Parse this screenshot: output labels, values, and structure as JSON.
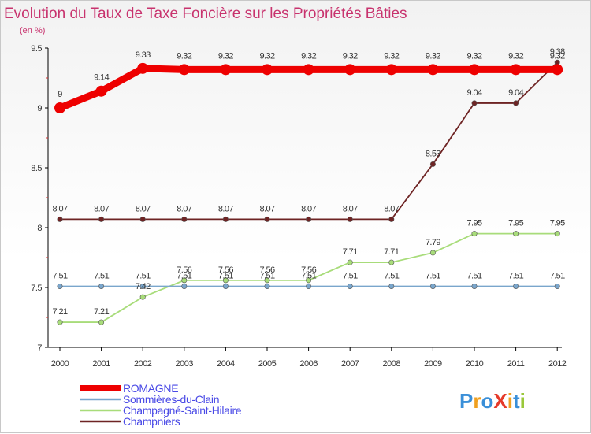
{
  "chart_data": {
    "type": "line",
    "title": "Evolution du Taux de Taxe Foncière sur les Propriétés Bâties",
    "subtitle": "(en %)",
    "x": [
      "2000",
      "2001",
      "2002",
      "2003",
      "2004",
      "2005",
      "2006",
      "2007",
      "2008",
      "2009",
      "2010",
      "2011",
      "2012"
    ],
    "yticks": [
      "7",
      "7.5",
      "8",
      "8.5",
      "9",
      "9.5"
    ],
    "ylim": [
      7,
      9.5
    ],
    "grid": false,
    "legend_position": "bottom-left",
    "series": [
      {
        "name": "ROMAGNE",
        "color": "#ee0000",
        "values": [
          9,
          9.14,
          9.33,
          9.32,
          9.32,
          9.32,
          9.32,
          9.32,
          9.32,
          9.32,
          9.32,
          9.32,
          9.32
        ],
        "labels": [
          "9",
          "9.14",
          "9.33",
          "9.32",
          "9.32",
          "9.32",
          "9.32",
          "9.32",
          "9.32",
          "9.32",
          "9.32",
          "9.32",
          "9.32"
        ]
      },
      {
        "name": "Sommières-du-Clain",
        "color": "#7aa6cc",
        "values": [
          7.51,
          7.51,
          7.51,
          7.51,
          7.51,
          7.51,
          7.51,
          7.51,
          7.51,
          7.51,
          7.51,
          7.51,
          7.51
        ],
        "labels": [
          "7.51",
          "7.51",
          "7.51",
          "7.51",
          "7.51",
          "7.51",
          "7.51",
          "7.51",
          "7.51",
          "7.51",
          "7.51",
          "7.51",
          "7.51"
        ]
      },
      {
        "name": "Champagné-Saint-Hilaire",
        "color": "#a8dc7a",
        "values": [
          7.21,
          7.21,
          7.42,
          7.56,
          7.56,
          7.56,
          7.56,
          7.71,
          7.71,
          7.79,
          7.95,
          7.95,
          7.95
        ],
        "labels": [
          "7.21",
          "7.21",
          "7.42",
          "7.56",
          "7.56",
          "7.56",
          "7.56",
          "7.71",
          "7.71",
          "7.79",
          "7.95",
          "7.95",
          "7.95"
        ]
      },
      {
        "name": "Champniers",
        "color": "#6e2424",
        "values": [
          8.07,
          8.07,
          8.07,
          8.07,
          8.07,
          8.07,
          8.07,
          8.07,
          8.07,
          8.53,
          9.04,
          9.04,
          9.38
        ],
        "labels": [
          "8.07",
          "8.07",
          "8.07",
          "8.07",
          "8.07",
          "8.07",
          "8.07",
          "8.07",
          "8.07",
          "8.53",
          "9.04",
          "9.04",
          "9.38"
        ]
      }
    ]
  },
  "logo": {
    "text": "ProXiti",
    "colors": [
      "#3a8fd8",
      "#f0a020",
      "#e53a2a",
      "#9ac83a"
    ]
  }
}
